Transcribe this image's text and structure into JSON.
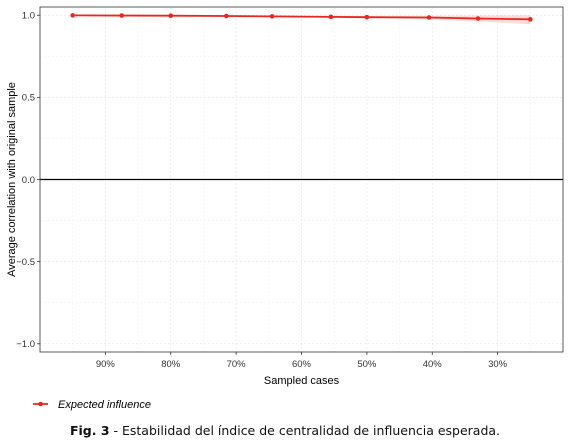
{
  "chart_data": {
    "type": "line",
    "xlabel": "Sampled cases",
    "ylabel": "Average correlation with original sample",
    "x": [
      "95%",
      "88%",
      "80%",
      "71%",
      "64%",
      "55%",
      "50%",
      "40%",
      "33%",
      "25%"
    ],
    "x_tick_labels": [
      "90%",
      "80%",
      "70%",
      "60%",
      "50%",
      "40%",
      "30%"
    ],
    "x_tick_values": [
      90,
      80,
      70,
      60,
      50,
      40,
      30
    ],
    "x_values": [
      95,
      87.5,
      80,
      71.5,
      64.5,
      55.5,
      50,
      40.5,
      33,
      25
    ],
    "xlim": [
      100,
      20
    ],
    "ylim": [
      -1.05,
      1.05
    ],
    "y_ticks": [
      -1.0,
      -0.5,
      0.0,
      0.5,
      1.0
    ],
    "y_tick_labels": [
      "−1.0",
      "−0.5",
      "0.0",
      "0.5",
      "1.0"
    ],
    "series": [
      {
        "name": "Expected influence",
        "values": [
          0.999,
          0.998,
          0.997,
          0.995,
          0.993,
          0.99,
          0.988,
          0.986,
          0.98,
          0.975
        ],
        "band_lower": [
          0.998,
          0.997,
          0.996,
          0.993,
          0.99,
          0.985,
          0.981,
          0.975,
          0.962,
          0.945
        ],
        "band_upper": [
          1.0,
          0.999,
          0.998,
          0.997,
          0.996,
          0.995,
          0.995,
          0.997,
          0.998,
          1.0
        ],
        "color": "#e8281f",
        "band_color": "#f6c6c2"
      }
    ],
    "reference_line": 0.0,
    "grid": true,
    "legend_position": "bottom-left"
  },
  "caption": {
    "label": "Fig. 3",
    "text": " - Estabilidad del índice de centralidad de influencia esperada."
  }
}
